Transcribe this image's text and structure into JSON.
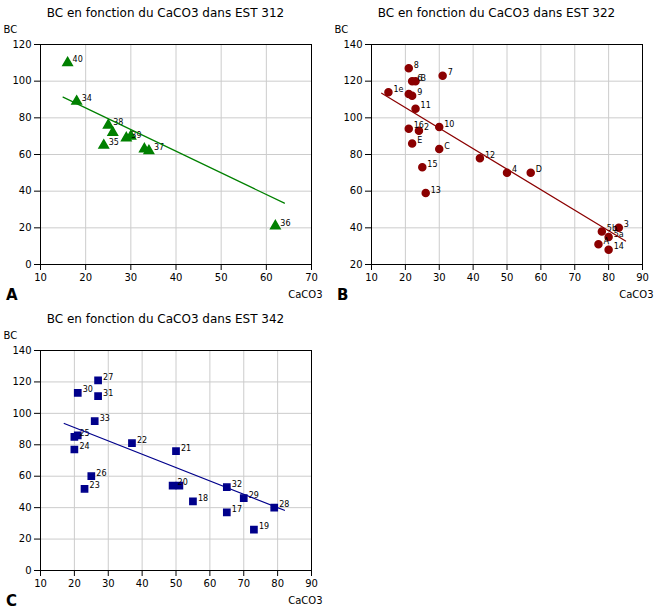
{
  "chart_data": [
    {
      "type": "scatter",
      "title": "BC en fonction du CaCO3 dans EST 312",
      "x_label": "CaCO3",
      "y_label": "BC",
      "panel_label": "A",
      "color": "#008000",
      "grid": true,
      "xlim": [
        10,
        70
      ],
      "ylim": [
        0,
        120
      ],
      "xticks": [
        10,
        20,
        30,
        40,
        50,
        60,
        70
      ],
      "yticks": [
        0,
        20,
        40,
        60,
        80,
        100,
        120
      ],
      "series": [
        {
          "type": "scatter",
          "marker": "triangle",
          "x": [
            16,
            18,
            25,
            26,
            24,
            29,
            30,
            34,
            33,
            62
          ],
          "values": [
            110,
            89,
            76,
            72,
            65,
            69,
            70,
            62,
            63,
            21
          ],
          "labels": [
            "40",
            "34",
            "38",
            null,
            "35",
            "39",
            null,
            "37",
            null,
            "36"
          ]
        },
        {
          "type": "line",
          "x": [
            15,
            64
          ],
          "values": [
            91.3,
            33.48
          ]
        }
      ]
    },
    {
      "type": "scatter",
      "title": "BC en fonction du CaCO3 dans EST 322",
      "x_label": "CaCO3",
      "y_label": "BC",
      "panel_label": "B",
      "color": "#8B0000",
      "grid": true,
      "xlim": [
        10,
        90
      ],
      "ylim": [
        20,
        140
      ],
      "xticks": [
        10,
        20,
        30,
        40,
        50,
        60,
        70,
        80,
        90
      ],
      "yticks": [
        20,
        40,
        60,
        80,
        100,
        120,
        140
      ],
      "series": [
        {
          "type": "scatter",
          "marker": "circle",
          "x": [
            21,
            22,
            23,
            15,
            21,
            22,
            23,
            21,
            24,
            22,
            30,
            30,
            25,
            26,
            31,
            42,
            50,
            57,
            77,
            78,
            80,
            80,
            83
          ],
          "values": [
            127,
            120,
            120,
            114,
            113,
            112,
            105,
            94,
            93,
            86,
            95,
            83,
            73,
            59,
            123,
            78,
            70,
            70,
            31,
            38,
            35,
            28,
            40
          ],
          "labels": [
            "8",
            "6",
            "B",
            "1e",
            null,
            "9",
            "11",
            "16",
            "2",
            "E",
            "10",
            "C",
            "15",
            "13",
            "7",
            "12",
            "4",
            "D",
            "A",
            "5b",
            "5a",
            "14",
            "3"
          ]
        },
        {
          "type": "line",
          "x": [
            13,
            85
          ],
          "values": [
            113.44,
            32.8
          ]
        }
      ]
    },
    {
      "type": "scatter",
      "title": "BC en fonction du CaCO3 dans EST 342",
      "x_label": "CaCO3",
      "y_label": "BC",
      "panel_label": "C",
      "color": "#00008B",
      "grid": true,
      "xlim": [
        10,
        90
      ],
      "ylim": [
        0,
        140
      ],
      "xticks": [
        10,
        20,
        30,
        40,
        50,
        60,
        70,
        80,
        90
      ],
      "yticks": [
        0,
        20,
        40,
        60,
        80,
        100,
        120,
        140
      ],
      "series": [
        {
          "type": "scatter",
          "marker": "square",
          "x": [
            27,
            21,
            27,
            26,
            20,
            21,
            20,
            37,
            25,
            23,
            50,
            49,
            51,
            55,
            65,
            65,
            70,
            73,
            79
          ],
          "values": [
            121,
            113,
            111,
            95,
            85,
            86,
            77,
            81,
            60,
            52,
            76,
            54,
            54,
            44,
            53,
            37,
            46,
            26,
            40
          ],
          "labels": [
            "27",
            "30",
            "31",
            "33",
            "25",
            null,
            "24",
            "22",
            "26",
            "23",
            "21",
            "20",
            null,
            "18",
            "32",
            "17",
            "29",
            "19",
            "28"
          ]
        },
        {
          "type": "line",
          "x": [
            17,
            82
          ],
          "values": [
            93.55,
            38.3
          ]
        }
      ]
    }
  ]
}
